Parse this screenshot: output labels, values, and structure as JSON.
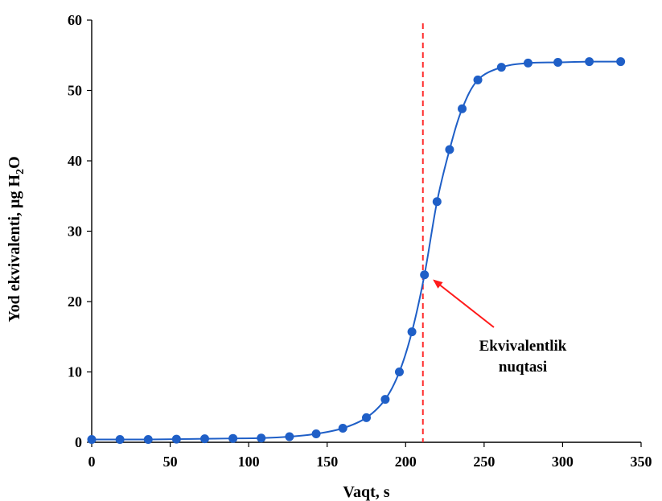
{
  "chart_data": {
    "type": "line",
    "xlabel": "Vaqt, s",
    "ylabel": {
      "main": "Yod ekvivalenti, µg H",
      "sub": "2",
      "tail": "O"
    },
    "xlim": [
      0,
      350
    ],
    "ylim": [
      0,
      60
    ],
    "xticks": [
      0,
      50,
      100,
      150,
      200,
      250,
      300,
      350
    ],
    "yticks": [
      0,
      10,
      20,
      30,
      40,
      50,
      60
    ],
    "grid": false,
    "series": [
      {
        "color": "#1f5fc7",
        "marker": "circle",
        "smooth": true,
        "x": [
          0,
          18,
          36,
          54,
          72,
          90,
          108,
          126,
          143,
          160,
          175,
          187,
          196,
          204,
          212,
          220,
          228,
          236,
          246,
          261,
          278,
          297,
          317,
          337
        ],
        "y": [
          0.4,
          0.4,
          0.4,
          0.45,
          0.5,
          0.55,
          0.6,
          0.8,
          1.2,
          2.0,
          3.5,
          6.1,
          10.0,
          15.7,
          23.8,
          34.2,
          41.6,
          47.4,
          51.5,
          53.3,
          53.9,
          54.0,
          54.1,
          54.1
        ]
      }
    ],
    "reference_line": {
      "x": 211,
      "color": "#ff2a2a",
      "style": "dashed"
    },
    "annotation": {
      "lines": [
        "Ekvivalentlik",
        "nuqtasi"
      ],
      "arrow_target": {
        "x": 212,
        "y": 23.8
      },
      "arrow_color": "#ff1a1a"
    }
  }
}
